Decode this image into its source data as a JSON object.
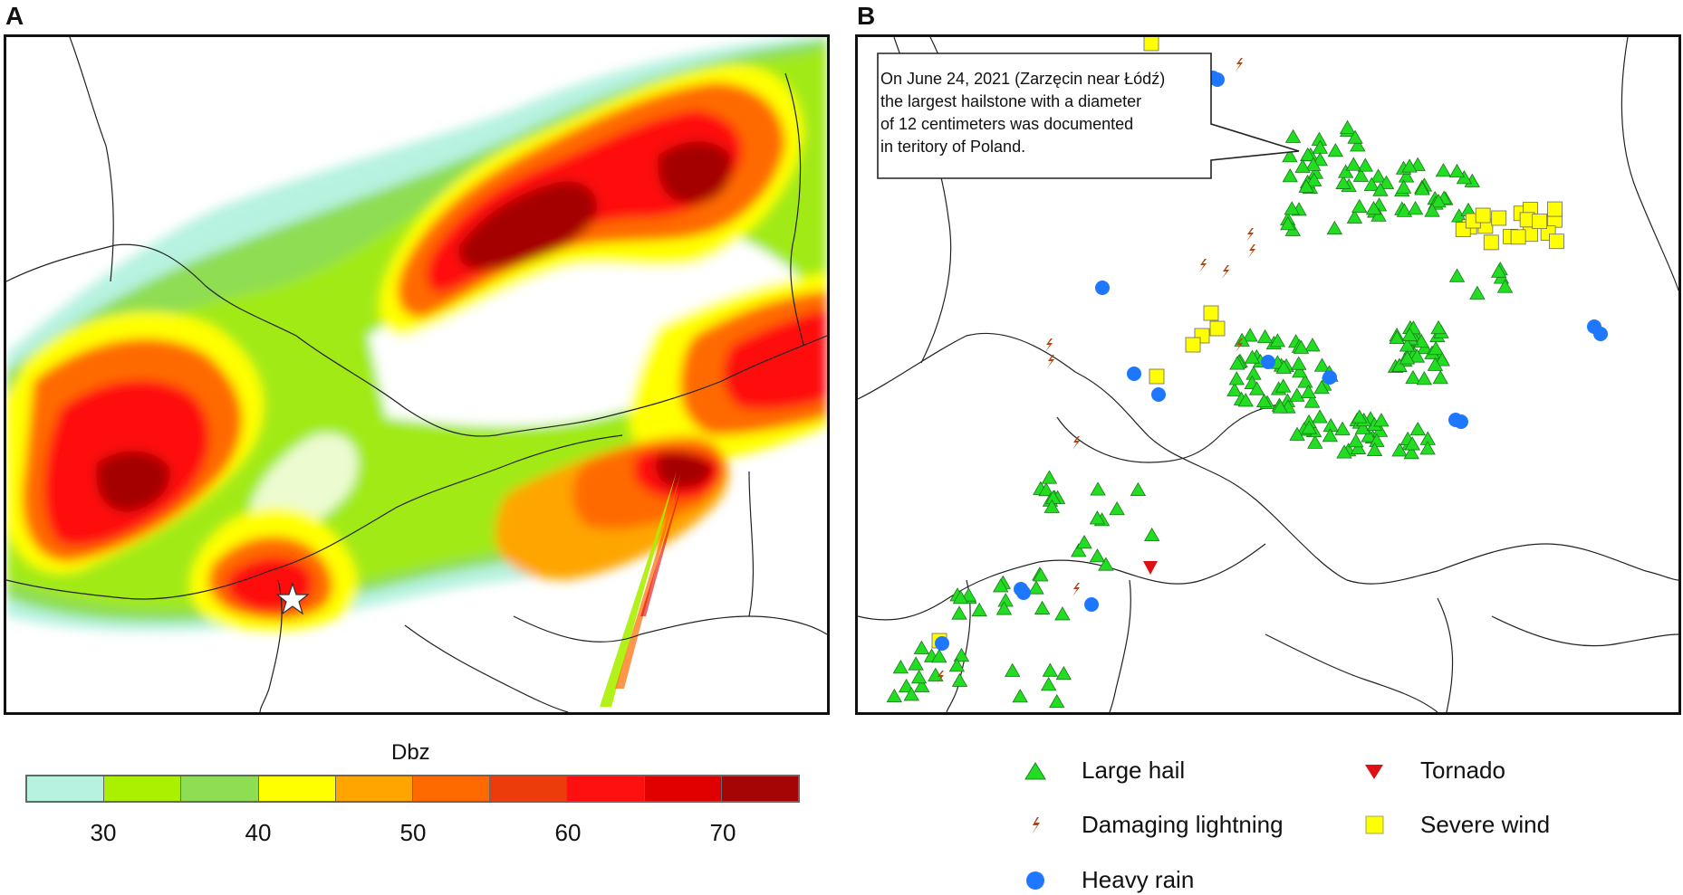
{
  "panels": {
    "a_label": "A",
    "b_label": "B"
  },
  "callout": {
    "lines": [
      "On June 24, 2021 (Zarzęcin near Łódź)",
      "the largest hailstone with a diameter",
      "of 12 centimeters was documented",
      "in teritory of Poland."
    ]
  },
  "colorbar": {
    "title": "Dbz",
    "tick_labels": [
      "30",
      "40",
      "50",
      "60",
      "70"
    ],
    "colors": [
      "#b7f2e0",
      "#aaf000",
      "#8fdd52",
      "#ffff00",
      "#ffa500",
      "#ff6a00",
      "#ec3c0c",
      "#ff1010",
      "#e00000",
      "#a50505"
    ]
  },
  "legend": {
    "items": [
      {
        "label": "Large hail",
        "icon": "triangle-up-icon",
        "color": "#22dd22"
      },
      {
        "label": "Tornado",
        "icon": "triangle-down-icon",
        "color": "#dd1111"
      },
      {
        "label": "Damaging lightning",
        "icon": "lightning-icon",
        "color": "#b5420f"
      },
      {
        "label": "Severe wind",
        "icon": "square-icon",
        "color": "#ffff00"
      },
      {
        "label": "Heavy rain",
        "icon": "circle-icon",
        "color": "#1e78ff"
      }
    ]
  }
}
